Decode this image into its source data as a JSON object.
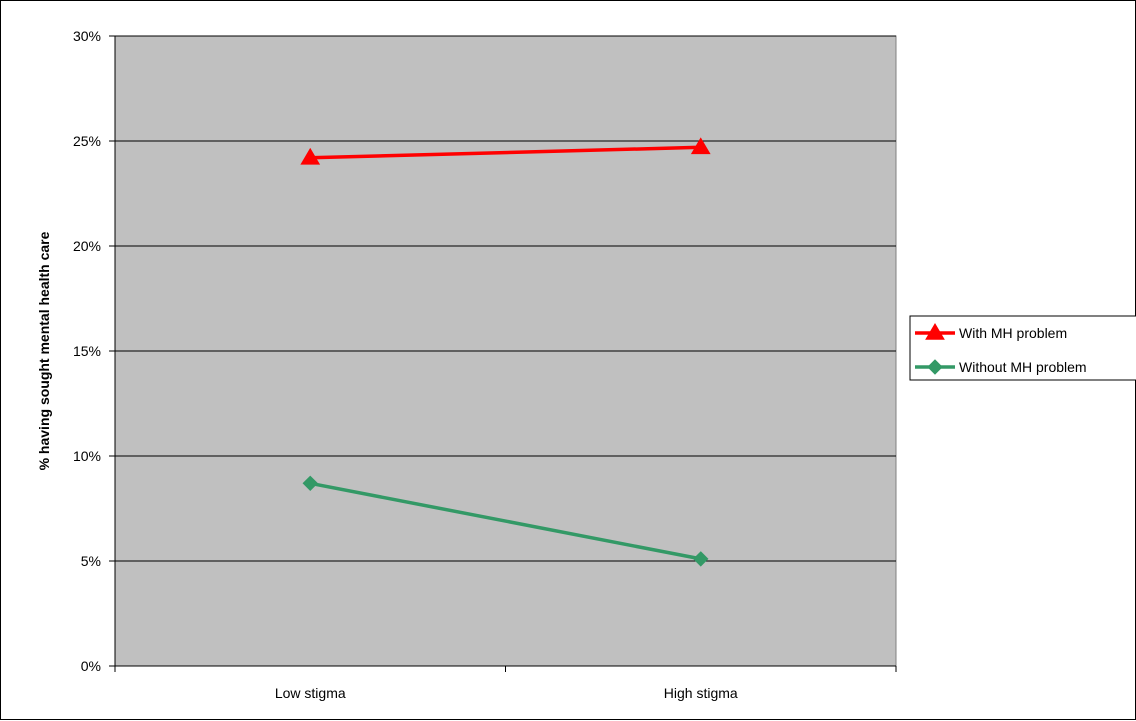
{
  "chart_data": {
    "type": "line",
    "categories": [
      "Low stigma",
      "High stigma"
    ],
    "series": [
      {
        "name": "With MH problem",
        "values": [
          24.2,
          24.7
        ],
        "color": "#ff0000",
        "marker": "triangle"
      },
      {
        "name": "Without MH problem",
        "values": [
          8.7,
          5.1
        ],
        "color": "#339966",
        "marker": "diamond"
      }
    ],
    "ylabel": "% having sought mental health care",
    "xlabel": "",
    "ylim": [
      0,
      30
    ],
    "yticks": [
      0,
      5,
      10,
      15,
      20,
      25,
      30
    ],
    "ytick_labels": [
      "0%",
      "5%",
      "10%",
      "15%",
      "20%",
      "25%",
      "30%"
    ],
    "grid": true,
    "plot_background": "#c0c0c0",
    "legend_position": "right"
  }
}
